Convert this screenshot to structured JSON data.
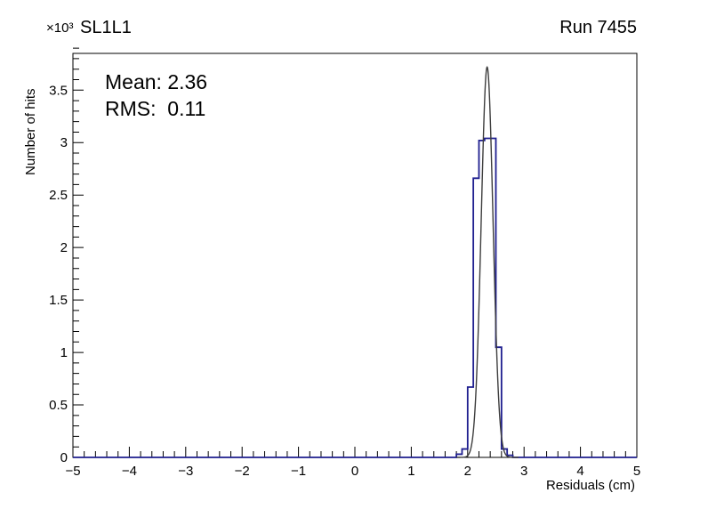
{
  "chart_data": {
    "type": "histogram",
    "title": "SL1L1",
    "right_label": "Run 7455",
    "xlabel": "Residuals (cm)",
    "ylabel": "Number of hits",
    "y_multiplier": "×10³",
    "xlim": [
      -5,
      5
    ],
    "ylim": [
      0,
      3.85
    ],
    "grid": false,
    "x_ticks": [
      -5,
      -4,
      -3,
      -2,
      -1,
      0,
      1,
      2,
      3,
      4,
      5
    ],
    "x_tick_labels": [
      "−5",
      "−4",
      "−3",
      "−2",
      "−1",
      "0",
      "1",
      "2",
      "3",
      "4",
      "5"
    ],
    "x_minor_step": 0.2,
    "y_ticks": [
      0,
      0.5,
      1,
      1.5,
      2,
      2.5,
      3,
      3.5
    ],
    "y_tick_labels": [
      "0",
      "0.5",
      "1",
      "1.5",
      "2",
      "2.5",
      "3",
      "3.5"
    ],
    "y_minor_step": 0.1,
    "annotations": [
      {
        "name": "mean",
        "text": "Mean: 2.36"
      },
      {
        "name": "rms",
        "text": "RMS:  0.11"
      }
    ],
    "series": [
      {
        "name": "residuals-histogram",
        "type": "step",
        "color": "#1f1f8f",
        "line_width": 1.8,
        "bin_width": 0.1,
        "bins": [
          [
            1.8,
            0.03
          ],
          [
            1.9,
            0.08
          ],
          [
            2.0,
            0.67
          ],
          [
            2.1,
            2.66
          ],
          [
            2.2,
            3.02
          ],
          [
            2.3,
            3.04
          ],
          [
            2.4,
            3.04
          ],
          [
            2.5,
            1.05
          ],
          [
            2.6,
            0.08
          ],
          [
            2.7,
            0.02
          ]
        ]
      },
      {
        "name": "gaussian-fit",
        "type": "gaussian",
        "color": "#3d3d3d",
        "line_width": 1.4,
        "amplitude": 3.72,
        "mean": 2.345,
        "sigma": 0.105,
        "range": [
          1.8,
          2.9
        ]
      }
    ]
  }
}
